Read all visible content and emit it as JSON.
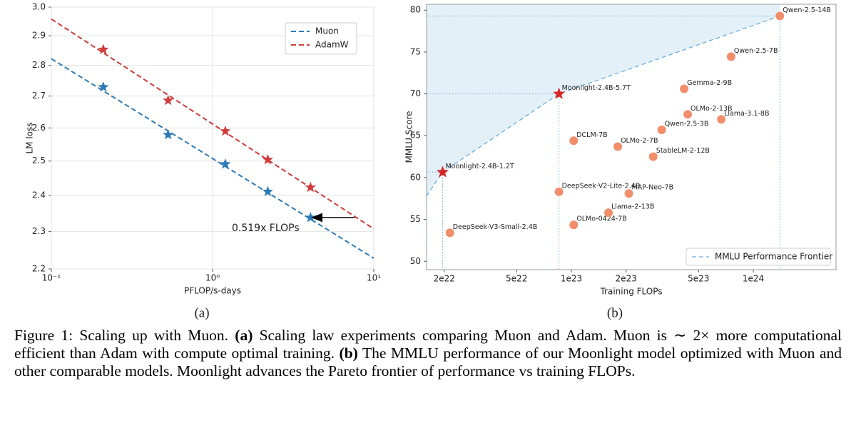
{
  "chart_data": [
    {
      "type": "line",
      "panel_label": "(a)",
      "xlabel": "PFLOP/s-days",
      "ylabel": "LM loss",
      "xscale": "log",
      "yscale": "log",
      "xlim": [
        0.1,
        10
      ],
      "xticks": [
        {
          "value": 0.1,
          "label": "10⁻¹"
        },
        {
          "value": 1,
          "label": "10⁰"
        },
        {
          "value": 10,
          "label": "10¹"
        }
      ],
      "ylim": [
        2.2,
        3.0
      ],
      "yticks": [
        2.2,
        2.3,
        2.4,
        2.5,
        2.6,
        2.7,
        2.8,
        2.9,
        {
          "value": 3,
          "label": "3.0"
        }
      ],
      "grid": true,
      "legend": "upper right",
      "marker": "star",
      "series": [
        {
          "name": "Muon",
          "color": "#2c7bb6",
          "x": [
            0.21,
            0.53,
            1.2,
            2.2,
            4.05
          ],
          "values": [
            2.729,
            2.579,
            2.491,
            2.411,
            2.338
          ],
          "fit_x": [
            0.1,
            10
          ],
          "fit_values": [
            2.822,
            2.228
          ]
        },
        {
          "name": "AdamW",
          "color": "#d13b3b",
          "x": [
            0.21,
            0.53,
            1.2,
            2.2,
            4.05
          ],
          "values": [
            2.853,
            2.686,
            2.59,
            2.504,
            2.423
          ],
          "fit_x": [
            0.1,
            10
          ],
          "fit_values": [
            2.958,
            2.307
          ]
        }
      ],
      "annotations": [
        {
          "text": "0.519x FLOPs",
          "arrow_from": [
            7.6,
            2.338
          ],
          "arrow_to": [
            4.15,
            2.338
          ]
        }
      ]
    },
    {
      "type": "scatter",
      "panel_label": "(b)",
      "xlabel": "Training FLOPs",
      "ylabel": "MMLU Score",
      "xscale": "log",
      "xlim": [
        1.6e+22,
        2.85e+24
      ],
      "xticks": [
        {
          "value": 2e+22,
          "label": "2e22"
        },
        {
          "value": 5e+22,
          "label": "5e22"
        },
        {
          "value": 1e+23,
          "label": "1e23"
        },
        {
          "value": 2e+23,
          "label": "2e23"
        },
        {
          "value": 5e+23,
          "label": "5e23"
        },
        {
          "value": 1e+24,
          "label": "1e24"
        }
      ],
      "ylim": [
        49,
        80.7
      ],
      "yticks": [
        50,
        55,
        60,
        65,
        70,
        75,
        80
      ],
      "color": "#f28e6b",
      "star_color": "#d62728",
      "frontier_color": "#6aaed6",
      "legend": "lower right",
      "labels": [
        "DeepSeek-V3-Small-2.4B",
        "Moonlight-2.4B-1.2T",
        "Moonlight-2.4B-5.7T",
        "DeepSeek-V2-Lite-2.4B",
        "OLMo-0424-7B",
        "DCLM-7B",
        "Llama-2-13B",
        "OLMo-2-7B",
        "MAP-Neo-7B",
        "StableLM-2-12B",
        "Qwen-2.5-3B",
        "Gemma-2-9B",
        "OLMo-2-13B",
        "Llama-3.1-8B",
        "Qwen-2.5-7B",
        "Qwen-2.5-14B"
      ],
      "x": [
        2.15e+22,
        1.96e+22,
        8.55e+22,
        8.55e+22,
        1.03e+23,
        1.03e+23,
        1.6e+23,
        1.8e+23,
        2.07e+23,
        2.82e+23,
        3.14e+23,
        4.17e+23,
        4.36e+23,
        6.67e+23,
        7.55e+23,
        1.4e+24
      ],
      "values": [
        53.4,
        60.65,
        70.0,
        58.3,
        54.35,
        64.4,
        55.8,
        63.7,
        58.1,
        62.5,
        65.7,
        70.6,
        67.55,
        66.95,
        74.45,
        79.3
      ],
      "markers": [
        "circle",
        "star",
        "star",
        "circle",
        "circle",
        "circle",
        "circle",
        "circle",
        "circle",
        "circle",
        "circle",
        "circle",
        "circle",
        "circle",
        "circle",
        "circle"
      ],
      "frontier_name": "MMLU Performance Frontier",
      "frontier_x": [
        1.6e+22,
        1.96e+22,
        8.55e+22,
        1.4e+24
      ],
      "frontier_values": [
        57.8,
        60.65,
        70.0,
        79.3
      ]
    }
  ],
  "caption": [
    {
      "text": "Figure 1: Scaling up with Muon. ",
      "bold": false
    },
    {
      "text": "(a)",
      "bold": true
    },
    {
      "text": " Scaling law experiments comparing Muon and Adam. Muon is ∼ 2× more computational efficient than Adam with compute optimal training. ",
      "bold": false
    },
    {
      "text": "(b)",
      "bold": true
    },
    {
      "text": " The MMLU performance of our Moonlight model optimized with Muon and other comparable models. Moonlight advances the Pareto frontier of performance vs training FLOPs.",
      "bold": false
    }
  ]
}
